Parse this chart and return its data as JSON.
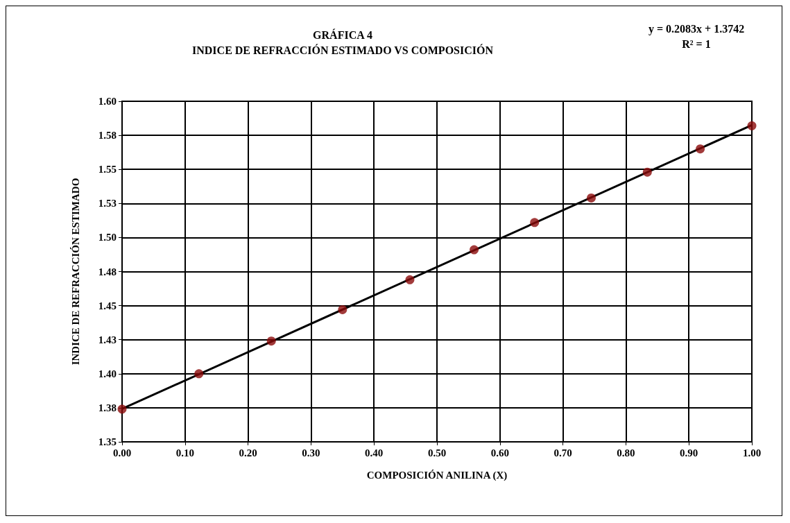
{
  "chart_data": {
    "type": "scatter",
    "title": "GRÁFICA 4",
    "subtitle": "INDICE DE REFRACCIÓN ESTIMADO VS COMPOSICIÓN",
    "xlabel": "COMPOSICIÓN ANILINA (X)",
    "ylabel": "INDICE DE REFRACCIÓN ESTIMADO",
    "x": [
      0,
      0.122,
      0.237,
      0.35,
      0.457,
      0.559,
      0.655,
      0.745,
      0.834,
      0.918,
      1.0
    ],
    "series": [
      {
        "color": "#8b0a0a",
        "values": [
          1.374,
          1.4,
          1.424,
          1.447,
          1.469,
          1.491,
          1.511,
          1.529,
          1.548,
          1.565,
          1.582
        ]
      },
      {
        "type": "line",
        "marker": "none",
        "color": "#000000",
        "x": [
          0,
          1
        ],
        "values": [
          1.3742,
          1.5825
        ]
      }
    ],
    "xlim": [
      0,
      1
    ],
    "xticks": [
      {
        "value": 0,
        "label": "0.00"
      },
      {
        "value": 0.1,
        "label": "0.10"
      },
      {
        "value": 0.2,
        "label": "0.20"
      },
      {
        "value": 0.3,
        "label": "0.30"
      },
      {
        "value": 0.4,
        "label": "0.40"
      },
      {
        "value": 0.5,
        "label": "0.50"
      },
      {
        "value": 0.6,
        "label": "0.60"
      },
      {
        "value": 0.7,
        "label": "0.70"
      },
      {
        "value": 0.8,
        "label": "0.80"
      },
      {
        "value": 0.9,
        "label": "0.90"
      },
      {
        "value": 1,
        "label": "1.00"
      }
    ],
    "ylim": [
      1.35,
      1.6
    ],
    "yticks": [
      {
        "value": 1.35,
        "label": "1.35"
      },
      {
        "value": 1.375,
        "label": "1.38"
      },
      {
        "value": 1.4,
        "label": "1.40"
      },
      {
        "value": 1.425,
        "label": "1.43"
      },
      {
        "value": 1.45,
        "label": "1.45"
      },
      {
        "value": 1.475,
        "label": "1.48"
      },
      {
        "value": 1.5,
        "label": "1.50"
      },
      {
        "value": 1.525,
        "label": "1.53"
      },
      {
        "value": 1.55,
        "label": "1.55"
      },
      {
        "value": 1.575,
        "label": "1.58"
      },
      {
        "value": 1.6,
        "label": "1.60"
      }
    ],
    "annotations": [
      "y = 0.2083x + 1.3742",
      "R² = 1"
    ],
    "grid": true,
    "marker": "circle"
  }
}
